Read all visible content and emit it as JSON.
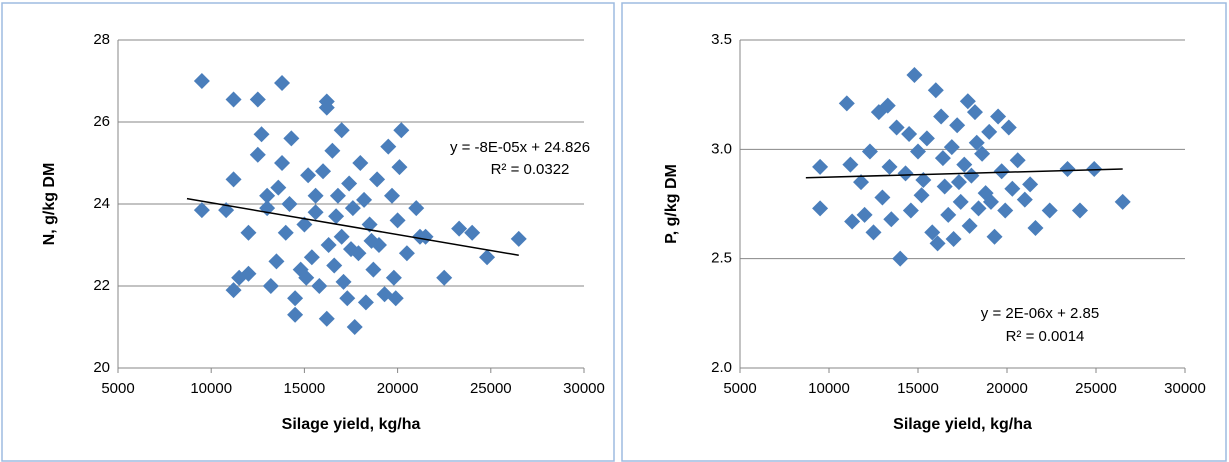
{
  "chart_data": [
    {
      "type": "scatter",
      "x_label": "Silage yield, kg/ha",
      "y_label": "N, g/kg DM",
      "xlim": [
        5000,
        30000
      ],
      "xticks": [
        5000,
        10000,
        15000,
        20000,
        25000,
        30000
      ],
      "ylim": [
        20,
        28
      ],
      "yticks": [
        20,
        22,
        24,
        26,
        28
      ],
      "grid": true,
      "color": "#4a7ebb",
      "x": [
        9500,
        11200,
        12500,
        13800,
        16200,
        16200,
        9500,
        10800,
        11200,
        11200,
        11500,
        12000,
        12500,
        12700,
        13000,
        13200,
        13500,
        13800,
        14200,
        14300,
        14500,
        14500,
        14800,
        15000,
        15200,
        15400,
        15600,
        15800,
        16000,
        16200,
        16300,
        16500,
        16600,
        16800,
        17000,
        17000,
        17100,
        17300,
        17400,
        17600,
        17700,
        17900,
        18000,
        18200,
        18300,
        18500,
        18700,
        18900,
        19000,
        19300,
        19500,
        19700,
        19800,
        19900,
        20000,
        20100,
        20200,
        20500,
        21000,
        21200,
        21500,
        22500,
        23300,
        24000,
        24800,
        26500,
        12000,
        13000,
        14000,
        15600,
        16700,
        17500,
        18600,
        15100,
        13600
      ],
      "values": [
        27,
        26.55,
        26.55,
        26.95,
        26.5,
        26.35,
        23.85,
        23.85,
        21.9,
        24.6,
        22.2,
        23.3,
        25.2,
        25.7,
        24.2,
        22.0,
        22.6,
        25.0,
        24.0,
        25.6,
        21.7,
        21.3,
        22.4,
        23.5,
        24.7,
        22.7,
        23.8,
        22.0,
        24.8,
        21.2,
        23.0,
        25.3,
        22.5,
        24.2,
        25.8,
        23.2,
        22.1,
        21.7,
        24.5,
        23.9,
        21.0,
        22.8,
        25.0,
        24.1,
        21.6,
        23.5,
        22.4,
        24.6,
        23.0,
        21.8,
        25.4,
        24.2,
        22.2,
        21.7,
        23.6,
        24.9,
        25.8,
        22.8,
        23.9,
        23.2,
        23.2,
        22.2,
        23.4,
        23.3,
        22.7,
        23.15,
        22.3,
        23.9,
        23.3,
        24.2,
        23.7,
        22.9,
        23.1,
        22.2,
        24.4
      ],
      "trendline": {
        "x": [
          8700,
          26500
        ],
        "y": [
          24.13,
          22.75
        ]
      },
      "annotations": [
        "y = -8E-05x + 24.826",
        "R² = 0.0322"
      ]
    },
    {
      "type": "scatter",
      "x_label": "Silage yield, kg/ha",
      "y_label": "P, g/kg DM",
      "xlim": [
        5000,
        30000
      ],
      "xticks": [
        5000,
        10000,
        15000,
        20000,
        25000,
        30000
      ],
      "ylim": [
        2,
        3.5
      ],
      "yticks": [
        {
          "value": 2,
          "label": "2.0"
        },
        2.5,
        {
          "value": 3,
          "label": "3.0"
        },
        3.5
      ],
      "grid": true,
      "color": "#4a7ebb",
      "x": [
        9500,
        9500,
        11000,
        11200,
        11300,
        11800,
        12300,
        12500,
        12800,
        13000,
        13300,
        13500,
        13800,
        14000,
        14300,
        14600,
        14800,
        15000,
        15200,
        15500,
        15800,
        16000,
        16100,
        16300,
        16500,
        16700,
        16900,
        17000,
        17200,
        17400,
        17600,
        17800,
        17900,
        18000,
        18200,
        18400,
        18600,
        18800,
        19000,
        19300,
        19500,
        19700,
        19900,
        20100,
        20300,
        20600,
        21000,
        21300,
        21600,
        22400,
        23400,
        24100,
        24900,
        26500,
        12000,
        13400,
        14500,
        15300,
        16400,
        17300,
        18300,
        19100
      ],
      "values": [
        2.92,
        2.73,
        3.21,
        2.93,
        2.67,
        2.85,
        2.99,
        2.62,
        3.17,
        2.78,
        3.2,
        2.68,
        3.1,
        2.5,
        2.89,
        2.72,
        3.34,
        2.99,
        2.79,
        3.05,
        2.62,
        3.27,
        2.57,
        3.15,
        2.83,
        2.7,
        3.01,
        2.59,
        3.11,
        2.76,
        2.93,
        3.22,
        2.65,
        2.88,
        3.17,
        2.73,
        2.98,
        2.8,
        3.08,
        2.6,
        3.15,
        2.9,
        2.72,
        3.1,
        2.82,
        2.95,
        2.77,
        2.84,
        2.64,
        2.72,
        2.91,
        2.72,
        2.91,
        2.76,
        2.7,
        2.92,
        3.07,
        2.86,
        2.96,
        2.85,
        3.03,
        2.76
      ],
      "trendline": {
        "x": [
          8700,
          26500
        ],
        "y": [
          2.87,
          2.91
        ]
      },
      "annotations": [
        "y = 2E-06x + 2.85",
        "R² = 0.0014"
      ]
    }
  ]
}
